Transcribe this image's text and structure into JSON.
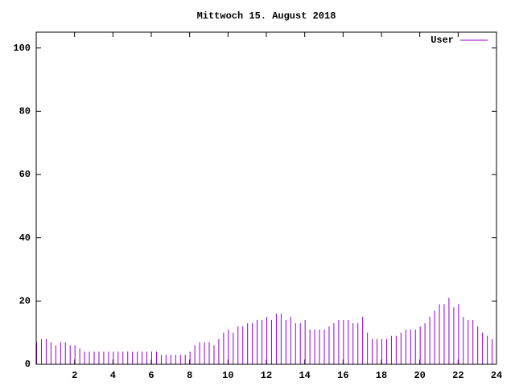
{
  "chart_data": {
    "type": "impulse",
    "title": "Mittwoch 15. August 2018",
    "series": [
      {
        "name": "User",
        "color": "#9400d3",
        "x": [
          0,
          0.25,
          0.5,
          0.75,
          1,
          1.25,
          1.5,
          1.75,
          2,
          2.25,
          2.5,
          2.75,
          3,
          3.25,
          3.5,
          3.75,
          4,
          4.25,
          4.5,
          4.75,
          5,
          5.25,
          5.5,
          5.75,
          6,
          6.25,
          6.5,
          6.75,
          7,
          7.25,
          7.5,
          7.75,
          8,
          8.25,
          8.5,
          8.75,
          9,
          9.25,
          9.5,
          9.75,
          10,
          10.25,
          10.5,
          10.75,
          11,
          11.25,
          11.5,
          11.75,
          12,
          12.25,
          12.5,
          12.75,
          13,
          13.25,
          13.5,
          13.75,
          14,
          14.25,
          14.5,
          14.75,
          15,
          15.25,
          15.5,
          15.75,
          16,
          16.25,
          16.5,
          16.75,
          17,
          17.25,
          17.5,
          17.75,
          18,
          18.25,
          18.5,
          18.75,
          19,
          19.25,
          19.5,
          19.75,
          20,
          20.25,
          20.5,
          20.75,
          21,
          21.25,
          21.5,
          21.75,
          22,
          22.25,
          22.5,
          22.75,
          23,
          23.25,
          23.5,
          23.75
        ],
        "values": [
          7,
          8,
          8,
          7,
          6,
          7,
          7,
          6,
          6,
          5,
          4,
          4,
          4,
          4,
          4,
          4,
          4,
          4,
          4,
          4,
          4,
          4,
          4,
          4,
          4,
          4,
          3,
          3,
          3,
          3,
          3,
          3,
          4,
          6,
          7,
          7,
          7,
          6,
          8,
          10,
          11,
          10,
          12,
          12,
          13,
          13,
          14,
          14,
          15,
          14,
          16,
          16,
          14,
          15,
          13,
          13,
          14,
          11,
          11,
          11,
          11,
          12,
          13,
          14,
          14,
          14,
          13,
          13,
          15,
          10,
          8,
          8,
          8,
          8,
          9,
          9,
          10,
          11,
          11,
          11,
          12,
          13,
          15,
          17,
          19,
          19,
          21,
          18,
          19,
          15,
          14,
          14,
          12,
          10,
          9,
          8
        ]
      }
    ],
    "xlim": [
      0,
      24
    ],
    "xticks": [
      2,
      4,
      6,
      8,
      10,
      12,
      14,
      16,
      18,
      20,
      22,
      24
    ],
    "ylim": [
      0,
      105
    ],
    "yticks": [
      0,
      20,
      40,
      60,
      80,
      100
    ],
    "legend": "top-right"
  }
}
